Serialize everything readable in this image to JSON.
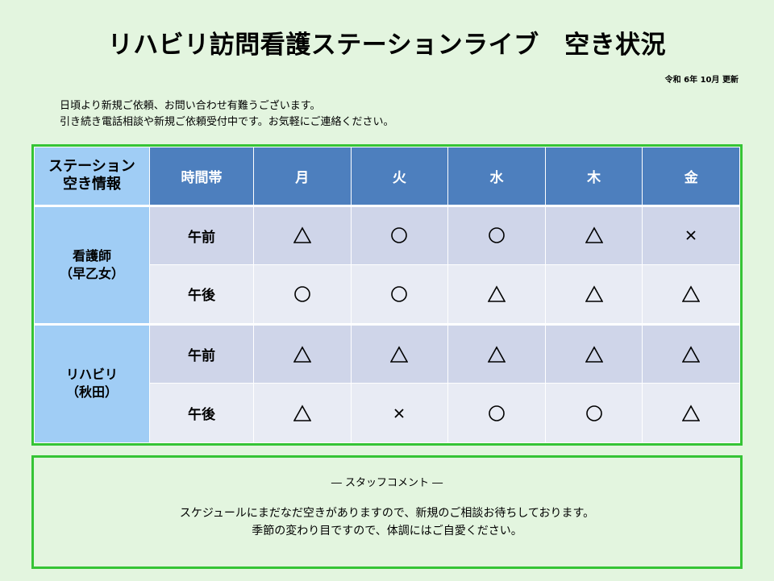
{
  "title": "リハビリ訪問看護ステーションライブ　空き状況",
  "updated": "令和  6年  10月 更新",
  "intro": [
    "日頃より新規ご依頼、お問い合わせ有難うございます。",
    "引き続き電話相談や新規ご依頼受付中です。お気軽にご連絡ください。"
  ],
  "schedule": {
    "corner_line1": "ステーション",
    "corner_line2": "空き情報",
    "time_header": "時間帯",
    "days": [
      "月",
      "火",
      "水",
      "木",
      "金"
    ],
    "staff": [
      {
        "name": "看護師",
        "sub": "（早乙女）",
        "slots": [
          {
            "label": "午前",
            "marks": [
              "triangle",
              "circle",
              "circle",
              "triangle",
              "cross"
            ]
          },
          {
            "label": "午後",
            "marks": [
              "circle",
              "circle",
              "triangle",
              "triangle",
              "triangle"
            ]
          }
        ]
      },
      {
        "name": "リハビリ",
        "sub": "（秋田）",
        "slots": [
          {
            "label": "午前",
            "marks": [
              "triangle",
              "triangle",
              "triangle",
              "triangle",
              "triangle"
            ]
          },
          {
            "label": "午後",
            "marks": [
              "triangle",
              "cross",
              "circle",
              "circle",
              "triangle"
            ]
          }
        ]
      }
    ]
  },
  "comment": {
    "title": "―  スタッフコメント  ―",
    "lines": [
      "スケジュールにまだなだ空きがありますので、新規のご相談お待ちしております。",
      "季節の変わり目ですので、体調にはご自愛ください。"
    ]
  },
  "colors": {
    "background": "#e3f5df",
    "border": "#35c435",
    "header": "#4d7fbe",
    "staff_cell": "#a0cdf5",
    "row_dark": "#cfd5e9",
    "row_light": "#e8ebf4"
  }
}
